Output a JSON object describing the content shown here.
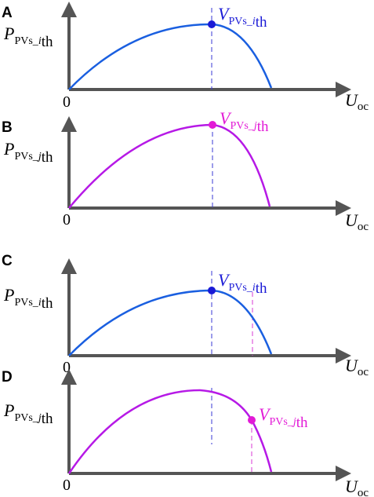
{
  "panels": [
    {
      "letter": "A",
      "y_symbol": "P",
      "y_sub_prefix": "PVs_",
      "y_sub_index": "i",
      "y_sub_suffix": "th",
      "origin": "0",
      "x_symbol": "U",
      "x_sub": "oc",
      "curve_color": "#1a5fe0",
      "marker_symbol": "V",
      "marker_sub_prefix": "PVs_",
      "marker_sub_index": "i",
      "marker_sub_suffix": "th",
      "marker_color": "#1a1ad6"
    },
    {
      "letter": "B",
      "y_symbol": "P",
      "y_sub_prefix": "PVs_",
      "y_sub_index": "j",
      "y_sub_suffix": "th",
      "origin": "0",
      "x_symbol": "U",
      "x_sub": "oc",
      "curve_color": "#b619e6",
      "marker_symbol": "V",
      "marker_sub_prefix": "PVs_",
      "marker_sub_index": "j",
      "marker_sub_suffix": "th",
      "marker_color": "#e21ad6"
    },
    {
      "letter": "C",
      "y_symbol": "P",
      "y_sub_prefix": "PVs_",
      "y_sub_index": "i",
      "y_sub_suffix": "th",
      "origin": "0",
      "x_symbol": "U",
      "x_sub": "oc",
      "curve_color": "#1a5fe0",
      "marker_symbol": "V",
      "marker_sub_prefix": "PVs_",
      "marker_sub_index": "i",
      "marker_sub_suffix": "th",
      "marker_color": "#1a1ad6"
    },
    {
      "letter": "D",
      "y_symbol": "P",
      "y_sub_prefix": "PVs_",
      "y_sub_index": "j",
      "y_sub_suffix": "th",
      "origin": "0",
      "x_symbol": "U",
      "x_sub": "oc",
      "curve_color": "#b619e6",
      "marker_symbol": "V",
      "marker_sub_prefix": "PVs_",
      "marker_sub_index": "j",
      "marker_sub_suffix": "th",
      "marker_color": "#e21ad6"
    }
  ],
  "axis_color": "#555555",
  "guide_color_blue": "#3a3ad6",
  "guide_color_magenta": "#d83ad6"
}
